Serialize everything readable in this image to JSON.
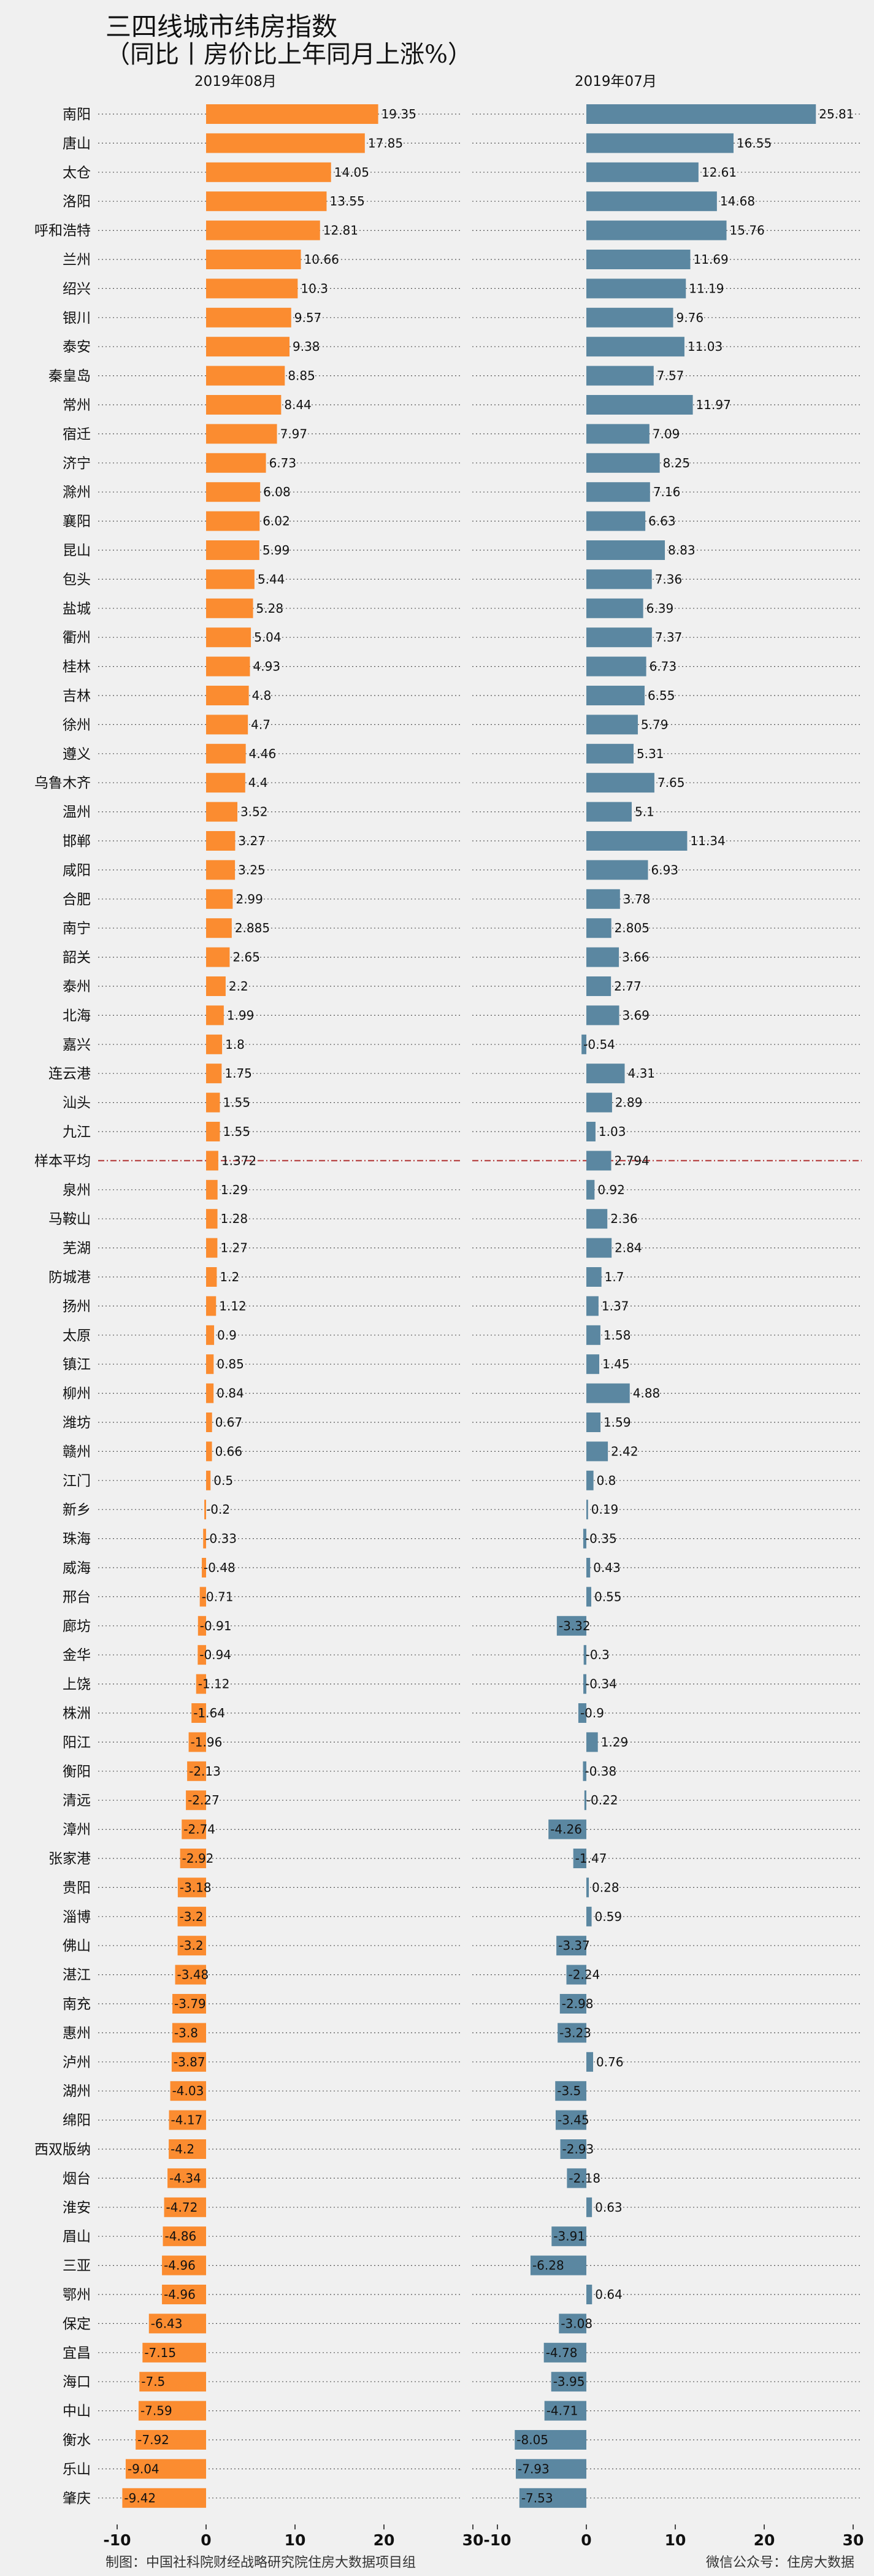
{
  "title": "三四线城市纬房指数",
  "subtitle": "（同比丨房价比上年同月上涨%）",
  "footer_left": "制图：中国社科院财经战略研究院住房大数据项目组",
  "footer_right": "微信公众号：住房大数据",
  "colors": {
    "aug": "#fb8c30",
    "jul": "#5b87a1",
    "avg_line": "#b03030",
    "background": "#f0f0f0"
  },
  "chart_data": [
    {
      "type": "bar",
      "orientation": "horizontal",
      "title": "2019年08月",
      "xlim": [
        -10,
        30
      ],
      "xticks": [
        -10,
        0,
        10,
        20,
        30
      ],
      "grid": "dotted horizontal",
      "categories": [
        "南阳",
        "唐山",
        "太仓",
        "洛阳",
        "呼和浩特",
        "兰州",
        "绍兴",
        "银川",
        "泰安",
        "秦皇岛",
        "常州",
        "宿迁",
        "济宁",
        "滁州",
        "襄阳",
        "昆山",
        "包头",
        "盐城",
        "衢州",
        "桂林",
        "吉林",
        "徐州",
        "遵义",
        "乌鲁木齐",
        "温州",
        "邯郸",
        "咸阳",
        "合肥",
        "南宁",
        "韶关",
        "泰州",
        "北海",
        "嘉兴",
        "连云港",
        "汕头",
        "九江",
        "样本平均",
        "泉州",
        "马鞍山",
        "芜湖",
        "防城港",
        "扬州",
        "太原",
        "镇江",
        "柳州",
        "潍坊",
        "赣州",
        "江门",
        "新乡",
        "珠海",
        "威海",
        "邢台",
        "廊坊",
        "金华",
        "上饶",
        "株洲",
        "阳江",
        "衡阳",
        "清远",
        "漳州",
        "张家港",
        "贵阳",
        "淄博",
        "佛山",
        "湛江",
        "南充",
        "惠州",
        "泸州",
        "湖州",
        "绵阳",
        "西双版纳",
        "烟台",
        "淮安",
        "眉山",
        "三亚",
        "鄂州",
        "保定",
        "宜昌",
        "海口",
        "中山",
        "衡水",
        "乐山",
        "肇庆"
      ],
      "values": [
        19.35,
        17.85,
        14.05,
        13.55,
        12.81,
        10.66,
        10.3,
        9.57,
        9.38,
        8.85,
        8.44,
        7.97,
        6.73,
        6.08,
        6.02,
        5.99,
        5.44,
        5.28,
        5.04,
        4.93,
        4.8,
        4.7,
        4.46,
        4.4,
        3.52,
        3.27,
        3.25,
        2.99,
        2.885,
        2.65,
        2.2,
        1.99,
        1.8,
        1.75,
        1.55,
        1.55,
        1.372,
        1.29,
        1.28,
        1.27,
        1.2,
        1.12,
        0.9,
        0.85,
        0.84,
        0.67,
        0.66,
        0.5,
        -0.2,
        -0.33,
        -0.48,
        -0.71,
        -0.91,
        -0.94,
        -1.12,
        -1.64,
        -1.96,
        -2.13,
        -2.27,
        -2.74,
        -2.92,
        -3.18,
        -3.2,
        -3.2,
        -3.48,
        -3.79,
        -3.8,
        -3.87,
        -4.03,
        -4.17,
        -4.2,
        -4.34,
        -4.72,
        -4.86,
        -4.96,
        -4.96,
        -6.43,
        -7.15,
        -7.5,
        -7.59,
        -7.92,
        -9.04,
        -9.42
      ]
    },
    {
      "type": "bar",
      "orientation": "horizontal",
      "title": "2019年07月",
      "xlim": [
        -10,
        30
      ],
      "xticks": [
        -10,
        0,
        10,
        20,
        30
      ],
      "grid": "dotted horizontal",
      "categories": [
        "南阳",
        "唐山",
        "太仓",
        "洛阳",
        "呼和浩特",
        "兰州",
        "绍兴",
        "银川",
        "泰安",
        "秦皇岛",
        "常州",
        "宿迁",
        "济宁",
        "滁州",
        "襄阳",
        "昆山",
        "包头",
        "盐城",
        "衢州",
        "桂林",
        "吉林",
        "徐州",
        "遵义",
        "乌鲁木齐",
        "温州",
        "邯郸",
        "咸阳",
        "合肥",
        "南宁",
        "韶关",
        "泰州",
        "北海",
        "嘉兴",
        "连云港",
        "汕头",
        "九江",
        "样本平均",
        "泉州",
        "马鞍山",
        "芜湖",
        "防城港",
        "扬州",
        "太原",
        "镇江",
        "柳州",
        "潍坊",
        "赣州",
        "江门",
        "新乡",
        "珠海",
        "威海",
        "邢台",
        "廊坊",
        "金华",
        "上饶",
        "株洲",
        "阳江",
        "衡阳",
        "清远",
        "漳州",
        "张家港",
        "贵阳",
        "淄博",
        "佛山",
        "湛江",
        "南充",
        "惠州",
        "泸州",
        "湖州",
        "绵阳",
        "西双版纳",
        "烟台",
        "淮安",
        "眉山",
        "三亚",
        "鄂州",
        "保定",
        "宜昌",
        "海口",
        "中山",
        "衡水",
        "乐山",
        "肇庆"
      ],
      "values": [
        25.81,
        16.55,
        12.61,
        14.68,
        15.76,
        11.69,
        11.19,
        9.76,
        11.03,
        7.57,
        11.97,
        7.09,
        8.25,
        7.16,
        6.63,
        8.83,
        7.36,
        6.39,
        7.37,
        6.73,
        6.55,
        5.79,
        5.31,
        7.65,
        5.1,
        11.34,
        6.93,
        3.78,
        2.805,
        3.66,
        2.77,
        3.69,
        -0.54,
        4.31,
        2.89,
        1.03,
        2.794,
        0.92,
        2.36,
        2.84,
        1.7,
        1.37,
        1.58,
        1.45,
        4.88,
        1.59,
        2.42,
        0.8,
        0.19,
        -0.35,
        0.43,
        0.55,
        -3.32,
        -0.3,
        -0.34,
        -0.9,
        1.29,
        -0.38,
        -0.22,
        -4.26,
        -1.47,
        0.28,
        0.59,
        -3.37,
        -2.24,
        -2.98,
        -3.23,
        0.76,
        -3.5,
        -3.45,
        -2.93,
        -2.18,
        0.63,
        -3.91,
        -6.28,
        0.64,
        -3.08,
        -4.78,
        -3.95,
        -4.71,
        -8.05,
        -7.93,
        -7.53
      ]
    }
  ]
}
